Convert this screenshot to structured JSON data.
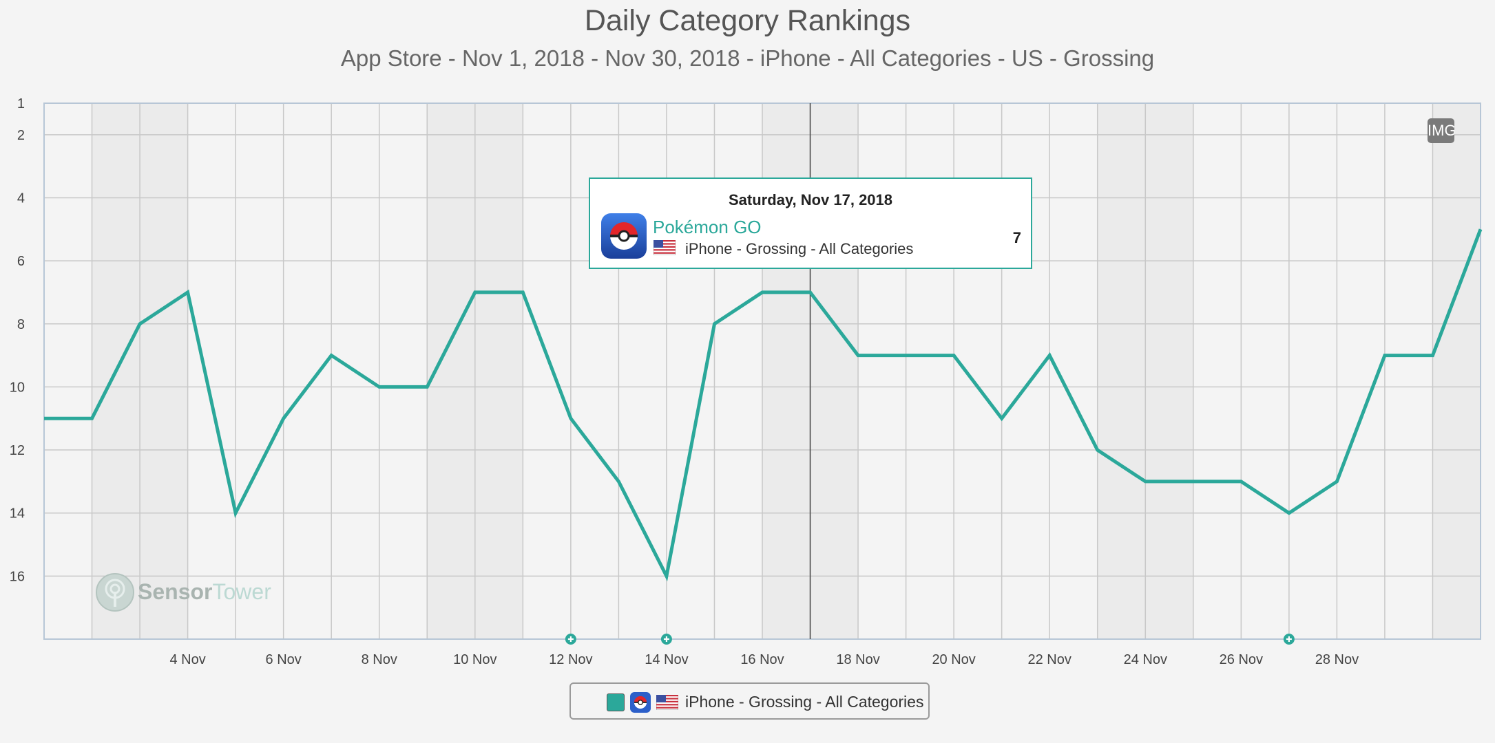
{
  "chart_data": {
    "type": "line",
    "title": "Daily Category Rankings",
    "subtitle": "App Store - Nov 1, 2018 - Nov 30, 2018 - iPhone - All Categories - US - Grossing",
    "x": [
      "2018-11-01",
      "2018-11-02",
      "2018-11-03",
      "2018-11-04",
      "2018-11-05",
      "2018-11-06",
      "2018-11-07",
      "2018-11-08",
      "2018-11-09",
      "2018-11-10",
      "2018-11-11",
      "2018-11-12",
      "2018-11-13",
      "2018-11-14",
      "2018-11-15",
      "2018-11-16",
      "2018-11-17",
      "2018-11-18",
      "2018-11-19",
      "2018-11-20",
      "2018-11-21",
      "2018-11-22",
      "2018-11-23",
      "2018-11-24",
      "2018-11-25",
      "2018-11-26",
      "2018-11-27",
      "2018-11-28",
      "2018-11-29",
      "2018-11-30",
      "2018-12-01"
    ],
    "xtick_labels": [
      "4 Nov",
      "6 Nov",
      "8 Nov",
      "10 Nov",
      "12 Nov",
      "14 Nov",
      "16 Nov",
      "18 Nov",
      "20 Nov",
      "22 Nov",
      "24 Nov",
      "26 Nov",
      "28 Nov"
    ],
    "ytick_labels": [
      "1",
      "2",
      "4",
      "6",
      "8",
      "10",
      "12",
      "14",
      "16"
    ],
    "ylim": [
      1,
      18
    ],
    "y_inverted": true,
    "grid": true,
    "weekend_shading": true,
    "series": [
      {
        "name": "iPhone - Grossing - All Categories",
        "color": "#2ba89a",
        "values": [
          11,
          11,
          8,
          7,
          14,
          11,
          9,
          10,
          10,
          7,
          7,
          11,
          13,
          16,
          8,
          7,
          7,
          9,
          9,
          9,
          11,
          9,
          12,
          13,
          13,
          13,
          14,
          13,
          9,
          9,
          5
        ]
      }
    ],
    "event_markers": [
      "2018-11-12",
      "2018-11-14",
      "2018-11-27"
    ],
    "legend_position": "bottom-center"
  },
  "tooltip": {
    "date": "Saturday, Nov 17, 2018",
    "app_name": "Pokémon GO",
    "detail": "iPhone - Grossing - All Categories",
    "value": "7"
  },
  "legend": {
    "label": "iPhone - Grossing - All Categories"
  },
  "badge": {
    "label": "IMG"
  },
  "watermark": {
    "part1": "Sensor",
    "part2": "Tower"
  },
  "colors": {
    "accent": "#2ba89a",
    "weekend_band": "#ebebeb",
    "grid": "#c8c8c8"
  },
  "icons": {
    "app": "pokeball-app-icon",
    "country": "us-flag-icon",
    "event": "event-plus-icon"
  }
}
